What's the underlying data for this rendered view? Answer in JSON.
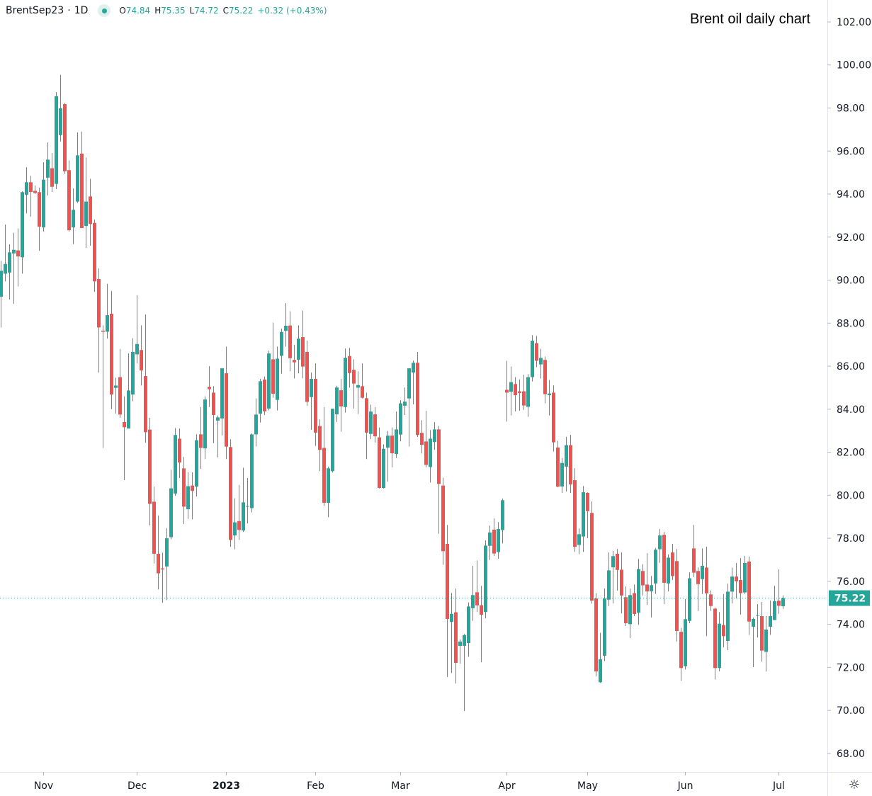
{
  "legend": {
    "symbol": "BrentSep23",
    "separator": "·",
    "interval": "1D",
    "open_label": "O",
    "open": "74.84",
    "high_label": "H",
    "high": "75.35",
    "low_label": "L",
    "low": "74.72",
    "close_label": "C",
    "close": "75.22",
    "change": "+0.32 (+0.43%)"
  },
  "title": "Brent oil daily chart",
  "icons": {
    "settings": "gear-icon",
    "status": "green-dot-icon"
  },
  "colors": {
    "up": "#26a69a",
    "down": "#ef5350",
    "last_price": "#26a69a",
    "axis": "#e0e3eb",
    "text": "#131722"
  },
  "chart_data": {
    "type": "candlestick",
    "title": "Brent oil daily chart",
    "grid": false,
    "ylim": [
      67.14,
      103.02
    ],
    "y_ticks": [
      "102.00",
      "100.00",
      "98.00",
      "96.00",
      "94.00",
      "92.00",
      "90.00",
      "88.00",
      "86.00",
      "84.00",
      "82.00",
      "80.00",
      "78.00",
      "76.00",
      "74.00",
      "72.00",
      "70.00",
      "68.00"
    ],
    "last_price": 75.22,
    "last_price_label": "75.22",
    "x_ticks": [
      {
        "label": "Nov",
        "bar": 10
      },
      {
        "label": "Dec",
        "bar": 32
      },
      {
        "label": "2023",
        "bar": 53,
        "bold": true
      },
      {
        "label": "Feb",
        "bar": 74
      },
      {
        "label": "Mar",
        "bar": 94
      },
      {
        "label": "Apr",
        "bar": 119
      },
      {
        "label": "May",
        "bar": 138
      },
      {
        "label": "Jun",
        "bar": 161
      },
      {
        "label": "Jul",
        "bar": 183
      }
    ],
    "ohlc_columns": [
      "open",
      "high",
      "low",
      "close"
    ],
    "candles": [
      [
        89.23,
        90.9,
        87.8,
        90.43
      ],
      [
        90.3,
        92.58,
        89.94,
        90.75
      ],
      [
        90.35,
        91.66,
        89.1,
        91.29
      ],
      [
        91.24,
        92.2,
        88.9,
        91.41
      ],
      [
        91.38,
        92.4,
        89.7,
        91.1
      ],
      [
        91.06,
        94.13,
        90.3,
        94.09
      ],
      [
        93.97,
        95.24,
        93.1,
        94.55
      ],
      [
        94.55,
        94.85,
        92.95,
        94.1
      ],
      [
        94.15,
        94.4,
        94.0,
        94.05
      ],
      [
        94.09,
        94.3,
        91.36,
        92.48
      ],
      [
        92.45,
        95.48,
        92.26,
        94.67
      ],
      [
        94.76,
        96.4,
        93.94,
        95.6
      ],
      [
        95.2,
        95.9,
        94.1,
        94.34
      ],
      [
        94.47,
        98.74,
        94.23,
        98.55
      ],
      [
        96.74,
        99.54,
        96.45,
        97.99
      ],
      [
        98.18,
        98.24,
        94.93,
        95.06
      ],
      [
        95.11,
        95.57,
        92.26,
        92.32
      ],
      [
        92.45,
        94.26,
        91.67,
        93.27
      ],
      [
        93.65,
        96.87,
        93.59,
        95.8
      ],
      [
        95.88,
        96.9,
        92.42,
        92.42
      ],
      [
        92.52,
        95.7,
        91.5,
        93.65
      ],
      [
        93.89,
        94.71,
        91.6,
        92.61
      ],
      [
        92.66,
        92.82,
        89.45,
        89.94
      ],
      [
        90.05,
        90.55,
        85.7,
        87.8
      ],
      [
        87.65,
        87.9,
        82.2,
        87.6
      ],
      [
        87.6,
        89.83,
        87.28,
        88.37
      ],
      [
        88.44,
        89.5,
        84.0,
        84.68
      ],
      [
        84.99,
        85.46,
        83.8,
        85.1
      ],
      [
        85.49,
        86.8,
        83.6,
        83.75
      ],
      [
        83.4,
        84.6,
        80.7,
        83.16
      ],
      [
        83.1,
        86.6,
        83.1,
        84.87
      ],
      [
        84.68,
        87.3,
        84.37,
        86.66
      ],
      [
        86.55,
        89.3,
        86.13,
        87.03
      ],
      [
        86.75,
        87.9,
        85.1,
        85.8
      ],
      [
        85.54,
        88.4,
        82.44,
        82.93
      ],
      [
        83.05,
        83.6,
        78.6,
        79.6
      ],
      [
        79.7,
        80.4,
        76.83,
        77.28
      ],
      [
        77.28,
        79.06,
        75.62,
        76.37
      ],
      [
        76.6,
        77.33,
        75.0,
        76.55
      ],
      [
        76.69,
        78.47,
        75.13,
        78.0
      ],
      [
        78.05,
        81.18,
        77.95,
        80.32
      ],
      [
        80.08,
        83.12,
        79.97,
        82.8
      ],
      [
        82.63,
        83.1,
        80.8,
        81.52
      ],
      [
        81.25,
        81.78,
        78.66,
        79.47
      ],
      [
        79.35,
        81.07,
        78.9,
        80.42
      ],
      [
        80.45,
        81.07,
        78.88,
        80.2
      ],
      [
        80.4,
        82.83,
        79.94,
        82.56
      ],
      [
        82.83,
        84.1,
        81.23,
        82.2
      ],
      [
        82.18,
        84.6,
        81.68,
        84.45
      ],
      [
        85.04,
        86.0,
        84.1,
        84.93
      ],
      [
        84.77,
        85.07,
        82.42,
        83.73
      ],
      [
        83.47,
        83.71,
        81.76,
        83.62
      ],
      [
        83.57,
        85.9,
        82.78,
        85.9
      ],
      [
        85.67,
        86.91,
        81.68,
        82.26
      ],
      [
        82.24,
        82.6,
        77.6,
        77.92
      ],
      [
        78.13,
        79.86,
        77.49,
        78.74
      ],
      [
        78.8,
        80.48,
        77.92,
        78.39
      ],
      [
        78.36,
        81.28,
        78.29,
        79.67
      ],
      [
        79.47,
        80.8,
        78.69,
        79.5
      ],
      [
        79.4,
        82.88,
        79.2,
        82.83
      ],
      [
        82.83,
        84.5,
        82.26,
        83.75
      ],
      [
        83.79,
        85.41,
        83.38,
        85.3
      ],
      [
        85.38,
        85.52,
        83.73,
        83.9
      ],
      [
        84.03,
        86.72,
        83.94,
        86.59
      ],
      [
        86.32,
        88.02,
        84.53,
        84.72
      ],
      [
        84.43,
        86.91,
        83.94,
        86.35
      ],
      [
        86.48,
        87.75,
        85.65,
        87.59
      ],
      [
        87.64,
        88.93,
        86.91,
        87.88
      ],
      [
        87.89,
        88.55,
        85.76,
        86.37
      ],
      [
        86.29,
        86.99,
        85.43,
        86.18
      ],
      [
        86.3,
        87.9,
        85.67,
        87.28
      ],
      [
        87.35,
        88.58,
        85.44,
        85.98
      ],
      [
        86.66,
        87.19,
        84.16,
        84.34
      ],
      [
        84.56,
        85.7,
        83.04,
        85.41
      ],
      [
        85.41,
        86.13,
        82.29,
        82.91
      ],
      [
        83.22,
        83.52,
        81.12,
        82.11
      ],
      [
        82.2,
        84.1,
        79.5,
        79.65
      ],
      [
        79.65,
        81.33,
        78.98,
        81.25
      ],
      [
        81.12,
        84.02,
        81.06,
        84.02
      ],
      [
        83.76,
        85.09,
        83.41,
        85.01
      ],
      [
        84.88,
        85.41,
        82.95,
        84.13
      ],
      [
        84.1,
        86.82,
        83.84,
        86.39
      ],
      [
        86.47,
        86.85,
        85.0,
        85.68
      ],
      [
        85.83,
        86.32,
        84.03,
        85.19
      ],
      [
        85.0,
        85.76,
        83.78,
        85.12
      ],
      [
        85.07,
        86.13,
        84.5,
        84.53
      ],
      [
        84.51,
        84.77,
        81.68,
        82.91
      ],
      [
        82.85,
        84.21,
        82.61,
        83.89
      ],
      [
        83.76,
        84.1,
        82.45,
        82.74
      ],
      [
        82.69,
        83.15,
        80.31,
        80.34
      ],
      [
        80.34,
        82.37,
        80.31,
        82.16
      ],
      [
        82.21,
        82.99,
        80.63,
        82.77
      ],
      [
        82.77,
        83.15,
        81.3,
        81.95
      ],
      [
        81.92,
        83.89,
        81.73,
        83.06
      ],
      [
        82.82,
        84.42,
        82.51,
        84.27
      ],
      [
        84.16,
        85.01,
        83.73,
        84.35
      ],
      [
        84.5,
        85.9,
        82.26,
        85.9
      ],
      [
        85.7,
        86.26,
        84.23,
        86.16
      ],
      [
        86.16,
        86.66,
        82.71,
        82.8
      ],
      [
        82.9,
        83.49,
        81.94,
        82.34
      ],
      [
        82.5,
        83.92,
        81.3,
        81.41
      ],
      [
        81.31,
        83.03,
        80.59,
        82.63
      ],
      [
        82.47,
        83.4,
        82.11,
        83.06
      ],
      [
        83.06,
        83.22,
        78.21,
        80.53
      ],
      [
        80.45,
        80.82,
        76.77,
        77.4
      ],
      [
        77.74,
        78.62,
        71.55,
        74.25
      ],
      [
        74.11,
        75.45,
        71.74,
        74.49
      ],
      [
        74.56,
        75.66,
        71.25,
        72.21
      ],
      [
        73.0,
        73.3,
        72.17,
        73.2
      ],
      [
        73.0,
        73.55,
        69.97,
        73.5
      ],
      [
        73.13,
        75.02,
        72.49,
        74.83
      ],
      [
        74.75,
        76.72,
        74.16,
        75.36
      ],
      [
        75.49,
        76.97,
        74.57,
        74.88
      ],
      [
        74.89,
        75.79,
        72.24,
        74.45
      ],
      [
        74.57,
        77.9,
        74.29,
        77.66
      ],
      [
        77.65,
        78.59,
        76.99,
        78.27
      ],
      [
        78.4,
        78.93,
        77.18,
        77.29
      ],
      [
        77.36,
        78.75,
        77.05,
        78.43
      ],
      [
        78.38,
        79.85,
        77.76,
        79.77
      ],
      [
        84.9,
        86.25,
        83.42,
        84.77
      ],
      [
        84.81,
        85.98,
        83.71,
        85.26
      ],
      [
        85.17,
        85.49,
        83.9,
        84.65
      ],
      [
        84.83,
        85.39,
        83.93,
        84.75
      ],
      [
        84.83,
        85.6,
        83.97,
        84.17
      ],
      [
        84.11,
        85.63,
        83.65,
        85.49
      ],
      [
        85.49,
        87.44,
        85.29,
        87.18
      ],
      [
        87.07,
        87.41,
        85.95,
        86.25
      ],
      [
        86.08,
        86.81,
        85.42,
        86.38
      ],
      [
        86.29,
        86.45,
        84.27,
        84.7
      ],
      [
        84.65,
        85.36,
        83.71,
        84.73
      ],
      [
        84.77,
        85.1,
        82.03,
        82.46
      ],
      [
        82.22,
        82.53,
        80.37,
        80.4
      ],
      [
        80.41,
        81.73,
        80.11,
        81.5
      ],
      [
        81.33,
        82.72,
        80.17,
        82.33
      ],
      [
        82.33,
        82.81,
        80.11,
        80.5
      ],
      [
        80.7,
        81.26,
        77.37,
        77.6
      ],
      [
        77.69,
        78.46,
        77.26,
        78.19
      ],
      [
        78.08,
        80.43,
        77.37,
        80.14
      ],
      [
        80.11,
        80.14,
        78.0,
        79.26
      ],
      [
        79.18,
        79.71,
        74.96,
        75.1
      ],
      [
        75.2,
        75.45,
        71.58,
        71.81
      ],
      [
        71.31,
        73.61,
        71.28,
        72.38
      ],
      [
        72.54,
        75.66,
        72.29,
        75.2
      ],
      [
        75.15,
        77.34,
        74.85,
        76.51
      ],
      [
        76.65,
        77.41,
        74.97,
        77.17
      ],
      [
        77.28,
        77.5,
        75.57,
        76.53
      ],
      [
        76.54,
        77.34,
        74.51,
        75.34
      ],
      [
        75.26,
        75.76,
        73.92,
        74.05
      ],
      [
        74.01,
        75.66,
        73.36,
        75.36
      ],
      [
        75.45,
        75.85,
        74.38,
        74.48
      ],
      [
        74.54,
        77.04,
        73.98,
        76.57
      ],
      [
        76.48,
        76.8,
        75.34,
        75.81
      ],
      [
        75.85,
        77.31,
        74.91,
        75.53
      ],
      [
        75.53,
        76.25,
        74.32,
        75.82
      ],
      [
        75.9,
        77.55,
        75.41,
        77.47
      ],
      [
        77.49,
        78.43,
        76.86,
        78.13
      ],
      [
        78.16,
        78.3,
        74.94,
        75.93
      ],
      [
        75.9,
        77.25,
        75.53,
        77.1
      ],
      [
        77.34,
        77.74,
        76.06,
        76.24
      ],
      [
        76.94,
        77.5,
        73.2,
        73.69
      ],
      [
        73.65,
        73.84,
        71.37,
        71.97
      ],
      [
        72.05,
        75.17,
        71.9,
        74.24
      ],
      [
        74.16,
        76.41,
        74.05,
        76.14
      ],
      [
        77.53,
        78.62,
        76.2,
        76.4
      ],
      [
        76.48,
        76.64,
        74.62,
        75.87
      ],
      [
        76.1,
        77.53,
        75.41,
        76.72
      ],
      [
        76.64,
        77.61,
        73.45,
        75.44
      ],
      [
        75.39,
        75.58,
        74.62,
        74.85
      ],
      [
        74.73,
        74.77,
        71.44,
        71.97
      ],
      [
        71.97,
        74.57,
        71.82,
        74.03
      ],
      [
        73.97,
        75.41,
        72.93,
        73.45
      ],
      [
        73.23,
        75.89,
        72.8,
        75.52
      ],
      [
        75.52,
        76.64,
        74.97,
        76.22
      ],
      [
        76.22,
        76.85,
        75.2,
        76.0
      ],
      [
        76.06,
        77.08,
        74.46,
        75.45
      ],
      [
        75.48,
        77.18,
        75.41,
        76.85
      ],
      [
        76.92,
        77.15,
        73.51,
        74.13
      ],
      [
        73.89,
        74.32,
        72.01,
        74.25
      ],
      [
        74.4,
        74.94,
        73.38,
        74.43
      ],
      [
        74.38,
        75.04,
        72.26,
        72.78
      ],
      [
        72.72,
        74.38,
        71.8,
        73.76
      ],
      [
        73.89,
        75.11,
        73.51,
        74.38
      ],
      [
        74.2,
        75.79,
        74.2,
        75.08
      ],
      [
        75.1,
        76.56,
        74.49,
        74.86
      ],
      [
        74.84,
        75.35,
        74.72,
        75.22
      ]
    ]
  }
}
